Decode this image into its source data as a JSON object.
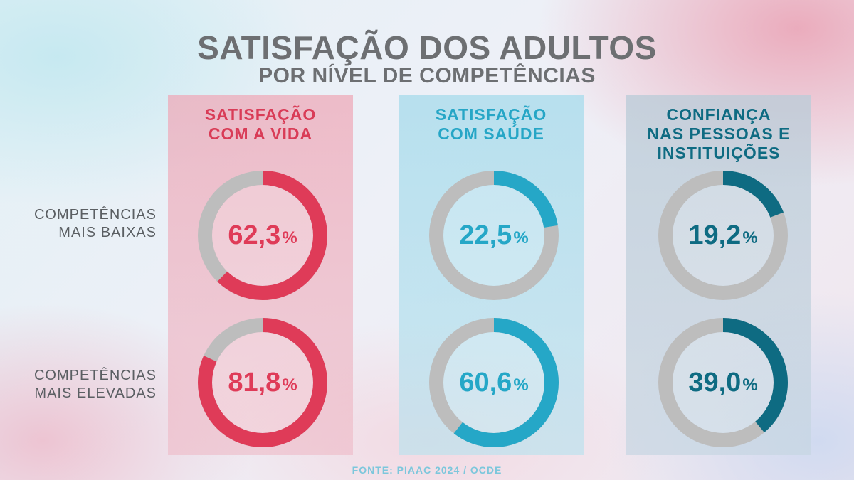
{
  "header": {
    "title": "SATISFAÇÃO DOS ADULTOS",
    "subtitle": "POR NÍVEL DE COMPETÊNCIAS"
  },
  "footer": {
    "source": "FONTE: PIAAC 2024 / OCDE"
  },
  "colors": {
    "track": "#bdbdbd",
    "vida": "#df3b58",
    "saude": "#25a7c7",
    "confianca": "#0e6b82"
  },
  "chart_data": {
    "type": "donut",
    "categories": [
      {
        "key": "vida",
        "lines": [
          "SATISFAÇÃO",
          "COM A VIDA"
        ]
      },
      {
        "key": "saude",
        "lines": [
          "SATISFAÇÃO",
          "COM SAÚDE"
        ]
      },
      {
        "key": "confianca",
        "lines": [
          "CONFIANÇA",
          "NAS PESSOAS E",
          "INSTITUIÇÕES"
        ]
      }
    ],
    "rows": [
      {
        "lines": [
          "COMPETÊNCIAS",
          "MAIS BAIXAS"
        ]
      },
      {
        "lines": [
          "COMPETÊNCIAS",
          "MAIS ELEVADAS"
        ]
      }
    ],
    "values": [
      [
        {
          "value": 62.3,
          "label": "62,3"
        },
        {
          "value": 22.5,
          "label": "22,5"
        },
        {
          "value": 19.2,
          "label": "19,2"
        }
      ],
      [
        {
          "value": 81.8,
          "label": "81,8"
        },
        {
          "value": 60.6,
          "label": "60,6"
        },
        {
          "value": 39.0,
          "label": "39,0"
        }
      ]
    ],
    "unit": "%"
  }
}
